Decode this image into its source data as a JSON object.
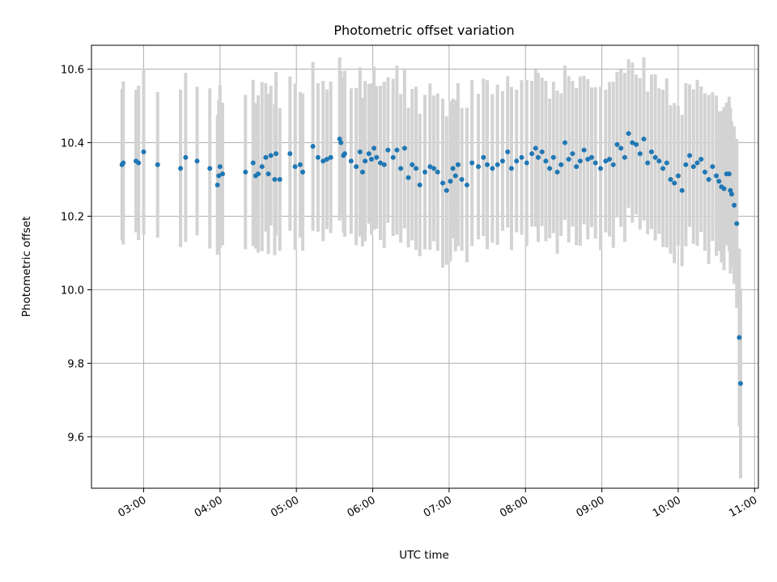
{
  "chart_data": {
    "type": "scatter",
    "title": "Photometric offset variation",
    "xlabel": "UTC time",
    "ylabel": "Photometric offset",
    "x_ticks": [
      "03:00",
      "04:00",
      "05:00",
      "06:00",
      "07:00",
      "08:00",
      "09:00",
      "10:00",
      "11:00"
    ],
    "y_ticks": [
      "9.6",
      "9.8",
      "10.0",
      "10.2",
      "10.4",
      "10.6"
    ],
    "xlim": [
      "02:19",
      "11:03"
    ],
    "ylim": [
      9.46,
      10.665
    ],
    "grid": true,
    "point_color": "#1f77b4",
    "errorbar_color": "#d3d3d3",
    "series": [
      {
        "x": [
          "02:43",
          "02:44",
          "02:54",
          "02:56",
          "03:00",
          "03:11",
          "03:29",
          "03:33",
          "03:42",
          "03:52",
          "03:58",
          "03:59",
          "04:00",
          "04:02",
          "04:20",
          "04:26",
          "04:28",
          "04:30",
          "04:33",
          "04:36",
          "04:38",
          "04:40",
          "04:43",
          "04:44",
          "04:47",
          "04:55",
          "04:59",
          "05:03",
          "05:05",
          "05:13",
          "05:17",
          "05:21",
          "05:24",
          "05:27",
          "05:34",
          "05:35",
          "05:37",
          "05:38",
          "05:43",
          "05:47",
          "05:50",
          "05:52",
          "05:54",
          "05:57",
          "05:59",
          "06:01",
          "06:03",
          "06:06",
          "06:09",
          "06:12",
          "06:16",
          "06:19",
          "06:22",
          "06:25",
          "06:28",
          "06:31",
          "06:34",
          "06:37",
          "06:41",
          "06:45",
          "06:48",
          "06:51",
          "06:55",
          "06:58",
          "07:01",
          "07:03",
          "07:05",
          "07:07",
          "07:10",
          "07:14",
          "07:18",
          "07:23",
          "07:27",
          "07:30",
          "07:34",
          "07:38",
          "07:42",
          "07:46",
          "07:49",
          "07:53",
          "07:57",
          "08:01",
          "08:05",
          "08:08",
          "08:10",
          "08:13",
          "08:16",
          "08:19",
          "08:22",
          "08:25",
          "08:28",
          "08:31",
          "08:34",
          "08:37",
          "08:40",
          "08:43",
          "08:46",
          "08:49",
          "08:52",
          "08:55",
          "08:59",
          "09:03",
          "09:06",
          "09:09",
          "09:12",
          "09:15",
          "09:18",
          "09:21",
          "09:24",
          "09:27",
          "09:30",
          "09:33",
          "09:36",
          "09:39",
          "09:42",
          "09:45",
          "09:48",
          "09:51",
          "09:54",
          "09:57",
          "10:00",
          "10:03",
          "10:06",
          "10:09",
          "10:12",
          "10:15",
          "10:18",
          "10:21",
          "10:24",
          "10:27",
          "10:30",
          "10:32",
          "10:34",
          "10:36",
          "10:38",
          "10:40"
        ],
        "y": [
          10.34,
          10.345,
          10.35,
          10.345,
          10.375,
          10.34,
          10.33,
          10.36,
          10.35,
          10.33,
          10.285,
          10.31,
          10.335,
          10.315,
          10.32,
          10.345,
          10.31,
          10.315,
          10.335,
          10.36,
          10.315,
          10.365,
          10.3,
          10.37,
          10.3,
          10.37,
          10.335,
          10.34,
          10.32,
          10.39,
          10.36,
          10.35,
          10.355,
          10.36,
          10.41,
          10.4,
          10.365,
          10.37,
          10.35,
          10.335,
          10.375,
          10.32,
          10.35,
          10.37,
          10.355,
          10.385,
          10.36,
          10.345,
          10.34,
          10.38,
          10.36,
          10.38,
          10.33,
          10.385,
          10.305,
          10.34,
          10.33,
          10.285,
          10.32,
          10.335,
          10.33,
          10.32,
          10.29,
          10.27,
          10.295,
          10.33,
          10.31,
          10.34,
          10.3,
          10.285,
          10.345,
          10.335,
          10.36,
          10.34,
          10.33,
          10.34,
          10.35,
          10.375,
          10.33,
          10.35,
          10.36,
          10.345,
          10.37,
          10.385,
          10.36,
          10.375,
          10.35,
          10.33,
          10.36,
          10.32,
          10.34,
          10.4,
          10.355,
          10.37,
          10.335,
          10.35,
          10.38,
          10.355,
          10.36,
          10.345,
          10.33,
          10.35,
          10.355,
          10.34,
          10.395,
          10.385,
          10.36,
          10.425,
          10.4,
          10.395,
          10.37,
          10.41,
          10.345,
          10.375,
          10.36,
          10.35,
          10.33,
          10.345,
          10.3,
          10.29,
          10.31,
          10.27,
          10.34,
          10.365,
          10.335,
          10.345,
          10.355,
          10.32,
          10.3,
          10.335,
          10.31,
          10.295,
          10.28,
          10.275,
          10.315,
          10.315
        ]
      },
      {
        "x": [
          "10:41",
          "10:42",
          "10:44",
          "10:46",
          "10:48",
          "10:49"
        ],
        "y": [
          10.27,
          10.26,
          10.23,
          10.18,
          9.87,
          9.745
        ]
      }
    ]
  }
}
